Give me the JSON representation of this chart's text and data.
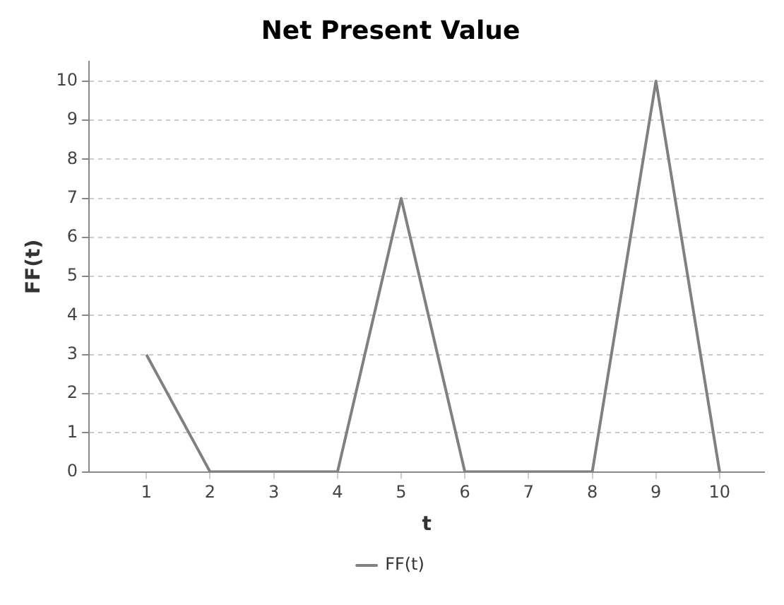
{
  "chart_data": {
    "type": "line",
    "title": "Net Present Value",
    "xlabel": "t",
    "ylabel": "FF(t)",
    "x": [
      1,
      2,
      3,
      4,
      5,
      6,
      7,
      8,
      9,
      10
    ],
    "series": [
      {
        "name": "FF(t)",
        "color": "#808080",
        "values": [
          3,
          0,
          0,
          0,
          7,
          0,
          0,
          0,
          10,
          0
        ]
      }
    ],
    "xlim": [
      0.1,
      10.7
    ],
    "xticks": [
      1,
      2,
      3,
      4,
      5,
      6,
      7,
      8,
      9,
      10
    ],
    "ylim": [
      0,
      10.5
    ],
    "yticks": [
      0,
      1,
      2,
      3,
      4,
      5,
      6,
      7,
      8,
      9,
      10
    ],
    "grid": "y",
    "legend": "bottom",
    "marker": "none",
    "line_style": "solid"
  }
}
